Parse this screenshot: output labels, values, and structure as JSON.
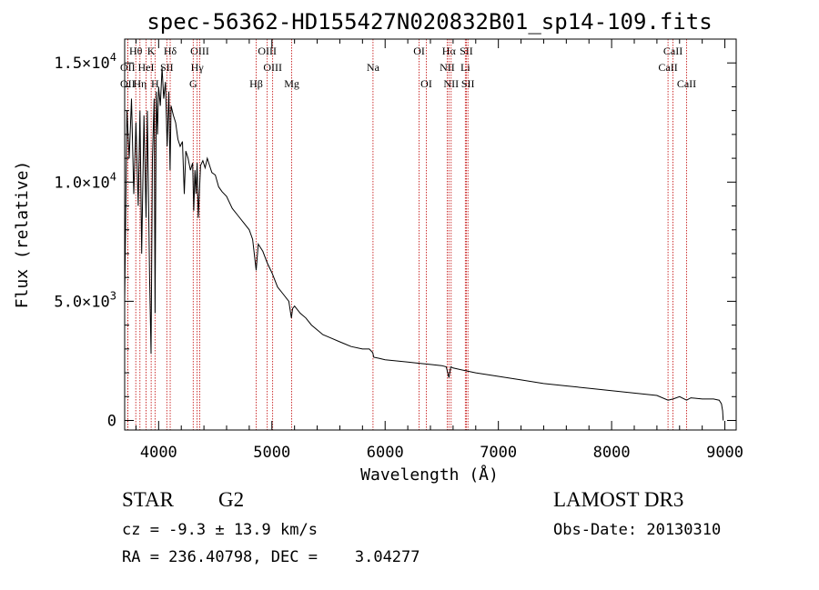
{
  "chart_data": {
    "type": "line",
    "title": "spec-56362-HD155427N020832B01_sp14-109.fits",
    "xlabel": "Wavelength (Å)",
    "ylabel": "Flux (relative)",
    "xlim": [
      3700,
      9100
    ],
    "ylim": [
      -400,
      16000
    ],
    "x_ticks": [
      4000,
      5000,
      6000,
      7000,
      8000,
      9000
    ],
    "x_tick_labels": [
      "4000",
      "5000",
      "6000",
      "7000",
      "8000",
      "9000"
    ],
    "y_ticks": [
      0,
      5000,
      10000,
      15000
    ],
    "y_tick_labels": [
      {
        "mantissa": "0",
        "exp": ""
      },
      {
        "mantissa": "5.0×10",
        "exp": "3"
      },
      {
        "mantissa": "1.0×10",
        "exp": "4"
      },
      {
        "mantissa": "1.5×10",
        "exp": "4"
      }
    ],
    "series": [
      {
        "name": "spectrum",
        "x": [
          3700,
          3720,
          3740,
          3760,
          3780,
          3800,
          3820,
          3835,
          3850,
          3870,
          3889,
          3900,
          3920,
          3933,
          3945,
          3960,
          3968,
          3980,
          3990,
          4000,
          4015,
          4030,
          4045,
          4060,
          4075,
          4090,
          4101,
          4110,
          4130,
          4150,
          4170,
          4190,
          4210,
          4226,
          4240,
          4260,
          4280,
          4300,
          4310,
          4320,
          4330,
          4340,
          4350,
          4370,
          4390,
          4410,
          4430,
          4450,
          4470,
          4500,
          4530,
          4560,
          4600,
          4650,
          4700,
          4750,
          4800,
          4830,
          4861,
          4880,
          4920,
          4960,
          5000,
          5050,
          5100,
          5150,
          5172,
          5183,
          5200,
          5250,
          5300,
          5350,
          5400,
          5450,
          5500,
          5600,
          5700,
          5800,
          5860,
          5890,
          5900,
          5950,
          6000,
          6100,
          6200,
          6300,
          6400,
          6500,
          6540,
          6563,
          6580,
          6600,
          6700,
          6800,
          7000,
          7200,
          7400,
          7600,
          7800,
          8000,
          8200,
          8400,
          8498,
          8542,
          8600,
          8662,
          8700,
          8800,
          8900,
          8950,
          8970,
          8980,
          8985
        ],
        "y": [
          5000,
          13000,
          11000,
          13500,
          9500,
          12500,
          9000,
          13000,
          7000,
          12800,
          8500,
          13000,
          6000,
          2800,
          11000,
          13500,
          4500,
          13800,
          12000,
          14000,
          13200,
          14800,
          13500,
          14200,
          11500,
          13800,
          10500,
          13200,
          12800,
          12500,
          11800,
          11500,
          11700,
          9500,
          11300,
          11000,
          10500,
          10800,
          8800,
          10500,
          9500,
          10800,
          8500,
          10700,
          10900,
          10600,
          11000,
          10700,
          10400,
          10300,
          9800,
          9600,
          9400,
          8900,
          8600,
          8300,
          8000,
          7600,
          6300,
          7400,
          7100,
          6600,
          6200,
          5600,
          5300,
          5000,
          4300,
          4700,
          4800,
          4500,
          4300,
          4000,
          3800,
          3600,
          3500,
          3300,
          3100,
          3000,
          3000,
          2850,
          2650,
          2600,
          2550,
          2500,
          2450,
          2400,
          2350,
          2300,
          2250,
          1800,
          2250,
          2200,
          2100,
          2000,
          1850,
          1700,
          1550,
          1450,
          1350,
          1250,
          1150,
          1050,
          850,
          900,
          1000,
          850,
          950,
          900,
          900,
          850,
          700,
          400,
          0
        ]
      }
    ],
    "line_markers": [
      {
        "name": "Hθ",
        "x": 3798,
        "row": 0
      },
      {
        "name": "OII",
        "x": 3727,
        "row": 1
      },
      {
        "name": "OII",
        "x": 3727,
        "row": 2
      },
      {
        "name": "Hη",
        "x": 3835,
        "row": 2
      },
      {
        "name": "HeI",
        "x": 3889,
        "row": 1
      },
      {
        "name": "K",
        "x": 3934,
        "row": 0
      },
      {
        "name": "SII",
        "x": 4072,
        "row": 1
      },
      {
        "name": "H",
        "x": 3968,
        "row": 2
      },
      {
        "name": "Hδ",
        "x": 4102,
        "row": 0
      },
      {
        "name": "OIII",
        "x": 4363,
        "row": 0
      },
      {
        "name": "Hγ",
        "x": 4340,
        "row": 1
      },
      {
        "name": "G",
        "x": 4305,
        "row": 2
      },
      {
        "name": "OIII",
        "x": 4959,
        "row": 0
      },
      {
        "name": "OIII",
        "x": 5007,
        "row": 1
      },
      {
        "name": "Hβ",
        "x": 4861,
        "row": 2
      },
      {
        "name": "Mg",
        "x": 5175,
        "row": 2
      },
      {
        "name": "Na",
        "x": 5893,
        "row": 1
      },
      {
        "name": "OI",
        "x": 6300,
        "row": 0
      },
      {
        "name": "OI",
        "x": 6364,
        "row": 2
      },
      {
        "name": "Hα",
        "x": 6563,
        "row": 0
      },
      {
        "name": "NII",
        "x": 6548,
        "row": 1
      },
      {
        "name": "NII",
        "x": 6583,
        "row": 2
      },
      {
        "name": "SII",
        "x": 6717,
        "row": 0
      },
      {
        "name": "Li",
        "x": 6708,
        "row": 1
      },
      {
        "name": "SII",
        "x": 6731,
        "row": 2
      },
      {
        "name": "CaII",
        "x": 8542,
        "row": 0
      },
      {
        "name": "CaII",
        "x": 8498,
        "row": 1
      },
      {
        "name": "CaII",
        "x": 8662,
        "row": 2
      }
    ]
  },
  "info": {
    "object_type": "STAR",
    "subclass": "G2",
    "redshift_line": "cz = -9.3 ± 13.9 km/s",
    "coords_line": "RA = 236.40798, DEC =    3.04277",
    "survey": "LAMOST DR3",
    "obs_date_line": "Obs-Date: 20130310"
  },
  "colors": {
    "spectrum": "#000000",
    "marker_line": "#c00000",
    "axes": "#000000",
    "background": "#ffffff"
  }
}
